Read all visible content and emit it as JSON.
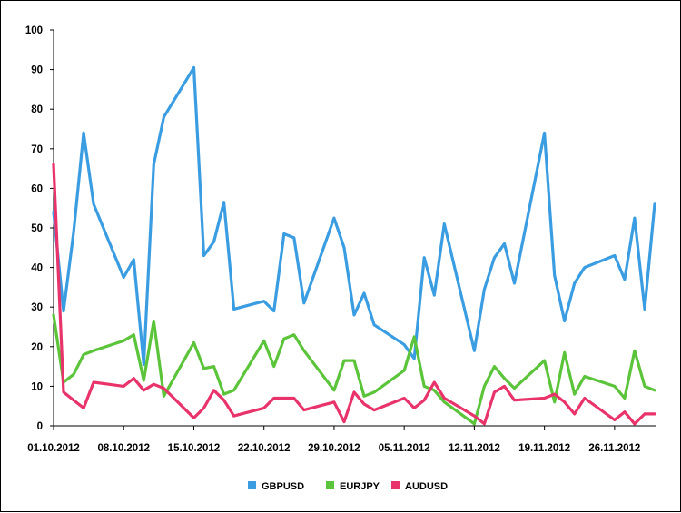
{
  "chart_data": {
    "type": "line",
    "title": "",
    "xlabel": "",
    "ylabel": "",
    "ylim": [
      0,
      100
    ],
    "y_ticks": [
      "0",
      "10",
      "20",
      "30",
      "40",
      "50",
      "60",
      "70",
      "80",
      "90",
      "100"
    ],
    "x_tick_labels": [
      "01.10.2012",
      "08.10.2012",
      "15.10.2012",
      "22.10.2012",
      "29.10.2012",
      "05.11.2012",
      "12.11.2012",
      "19.11.2012",
      "26.11.2012"
    ],
    "x_range": [
      "01.10.2012",
      "30.11.2012"
    ],
    "grid": "none",
    "legend_position": "bottom",
    "series": [
      {
        "name": "GBPUSD",
        "color": "#3B9DE1",
        "x": [
          "01.10.2012",
          "02.10.2012",
          "03.10.2012",
          "04.10.2012",
          "05.10.2012",
          "08.10.2012",
          "09.10.2012",
          "10.10.2012",
          "11.10.2012",
          "12.10.2012",
          "15.10.2012",
          "16.10.2012",
          "17.10.2012",
          "18.10.2012",
          "19.10.2012",
          "22.10.2012",
          "23.10.2012",
          "24.10.2012",
          "25.10.2012",
          "26.10.2012",
          "29.10.2012",
          "30.10.2012",
          "31.10.2012",
          "01.11.2012",
          "02.11.2012",
          "05.11.2012",
          "06.11.2012",
          "07.11.2012",
          "08.11.2012",
          "09.11.2012",
          "12.11.2012",
          "13.11.2012",
          "14.11.2012",
          "15.11.2012",
          "16.11.2012",
          "19.11.2012",
          "20.11.2012",
          "21.11.2012",
          "22.11.2012",
          "23.11.2012",
          "26.11.2012",
          "27.11.2012",
          "28.11.2012",
          "29.11.2012",
          "30.11.2012"
        ],
        "values": [
          54,
          29,
          49,
          74,
          56,
          37.5,
          42,
          15.5,
          66,
          78,
          90.5,
          43,
          46.5,
          56.5,
          29.5,
          31.5,
          29,
          48.5,
          47.5,
          31,
          52.5,
          45,
          28,
          33.5,
          25.5,
          20.5,
          17,
          42.5,
          33,
          51,
          19,
          34.5,
          42.5,
          46,
          36,
          74,
          38,
          26.5,
          36,
          40,
          43,
          37,
          52.5,
          29.5,
          56
        ]
      },
      {
        "name": "EURJPY",
        "color": "#5CC43A",
        "x": [
          "01.10.2012",
          "02.10.2012",
          "03.10.2012",
          "04.10.2012",
          "05.10.2012",
          "08.10.2012",
          "09.10.2012",
          "10.10.2012",
          "11.10.2012",
          "12.10.2012",
          "15.10.2012",
          "16.10.2012",
          "17.10.2012",
          "18.10.2012",
          "19.10.2012",
          "22.10.2012",
          "23.10.2012",
          "24.10.2012",
          "25.10.2012",
          "26.10.2012",
          "29.10.2012",
          "30.10.2012",
          "31.10.2012",
          "01.11.2012",
          "02.11.2012",
          "05.11.2012",
          "06.11.2012",
          "07.11.2012",
          "08.11.2012",
          "09.11.2012",
          "12.11.2012",
          "13.11.2012",
          "14.11.2012",
          "15.11.2012",
          "16.11.2012",
          "19.11.2012",
          "20.11.2012",
          "21.11.2012",
          "22.11.2012",
          "23.11.2012",
          "26.11.2012",
          "27.11.2012",
          "28.11.2012",
          "29.11.2012",
          "30.11.2012"
        ],
        "values": [
          28,
          11,
          13,
          18,
          19,
          21.5,
          23,
          11.5,
          26.5,
          7.5,
          21,
          14.5,
          15,
          8,
          9,
          21.5,
          15,
          22,
          23,
          19,
          9,
          16.5,
          16.5,
          7.5,
          8.5,
          14,
          22.5,
          10,
          9,
          6,
          0.5,
          10,
          15,
          12,
          9.5,
          16.5,
          6,
          18.5,
          8,
          12.5,
          10,
          7,
          19,
          10,
          9
        ]
      },
      {
        "name": "AUDUSD",
        "color": "#E8336B",
        "x": [
          "01.10.2012",
          "02.10.2012",
          "03.10.2012",
          "04.10.2012",
          "05.10.2012",
          "08.10.2012",
          "09.10.2012",
          "10.10.2012",
          "11.10.2012",
          "12.10.2012",
          "15.10.2012",
          "16.10.2012",
          "17.10.2012",
          "18.10.2012",
          "19.10.2012",
          "22.10.2012",
          "23.10.2012",
          "24.10.2012",
          "25.10.2012",
          "26.10.2012",
          "29.10.2012",
          "30.10.2012",
          "31.10.2012",
          "01.11.2012",
          "02.11.2012",
          "05.11.2012",
          "06.11.2012",
          "07.11.2012",
          "08.11.2012",
          "09.11.2012",
          "12.11.2012",
          "13.11.2012",
          "14.11.2012",
          "15.11.2012",
          "16.11.2012",
          "19.11.2012",
          "20.11.2012",
          "21.11.2012",
          "22.11.2012",
          "23.11.2012",
          "26.11.2012",
          "27.11.2012",
          "28.11.2012",
          "29.11.2012",
          "30.11.2012"
        ],
        "values": [
          66,
          8.5,
          6.5,
          4.5,
          11,
          10,
          12,
          9,
          10.5,
          9.5,
          2,
          4.5,
          9,
          6.5,
          2.5,
          4.5,
          7,
          7,
          7,
          4,
          6,
          1,
          8.5,
          5.5,
          4,
          7,
          4.5,
          6.5,
          11,
          7,
          2.5,
          0.5,
          8.5,
          10,
          6.5,
          7,
          8,
          6,
          3,
          7,
          1.5,
          3.5,
          0.5,
          3,
          3
        ]
      }
    ]
  }
}
